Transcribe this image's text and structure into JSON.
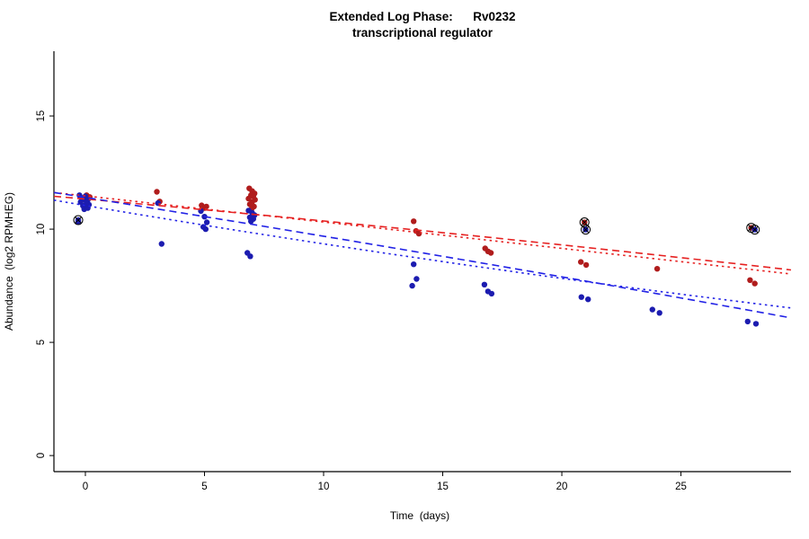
{
  "chart_data": {
    "type": "scatter",
    "title_line1": "Extended Log Phase:      Rv0232",
    "title_line2": "transcriptional regulator",
    "xlabel": "Time  (days)",
    "ylabel": "Abundance  (log2 RPMHEG)",
    "xlim": [
      -1.32,
      29.62
    ],
    "ylim": [
      -0.71,
      17.86
    ],
    "xticks": [
      0,
      5,
      10,
      15,
      20,
      25
    ],
    "yticks": [
      0,
      5,
      10,
      15
    ],
    "grid": false,
    "legend": "none",
    "colors": {
      "red": "#b01c1c",
      "blue": "#1c1cb0",
      "red_line": "#e62222",
      "blue_line": "#2222e6",
      "flag": "#000000"
    },
    "series": [
      {
        "name": "red",
        "color_key": "red",
        "points": [
          [
            0.05,
            11.5
          ],
          [
            0.18,
            11.42
          ],
          [
            -0.08,
            11.35
          ],
          [
            3.0,
            11.65
          ],
          [
            3.12,
            11.22
          ],
          [
            4.88,
            11.05
          ],
          [
            5.08,
            11.0
          ],
          [
            5.0,
            10.93
          ],
          [
            6.88,
            11.8
          ],
          [
            7.0,
            11.68
          ],
          [
            7.1,
            11.58
          ],
          [
            6.95,
            11.5
          ],
          [
            7.05,
            11.45
          ],
          [
            6.85,
            11.35
          ],
          [
            7.12,
            11.3
          ],
          [
            7.0,
            11.2
          ],
          [
            6.9,
            11.1
          ],
          [
            7.08,
            11.0
          ],
          [
            6.98,
            10.9
          ],
          [
            13.78,
            10.35
          ],
          [
            13.88,
            9.92
          ],
          [
            14.0,
            9.8
          ],
          [
            16.78,
            9.15
          ],
          [
            16.9,
            9.02
          ],
          [
            17.02,
            8.95
          ],
          [
            20.8,
            8.55
          ],
          [
            21.02,
            8.42
          ],
          [
            24.0,
            8.25
          ],
          [
            27.9,
            7.75
          ],
          [
            28.1,
            7.6
          ]
        ]
      },
      {
        "name": "blue",
        "color_key": "blue",
        "points": [
          [
            -0.25,
            11.5
          ],
          [
            0.0,
            11.45
          ],
          [
            -0.15,
            11.38
          ],
          [
            -0.05,
            11.3
          ],
          [
            0.1,
            11.28
          ],
          [
            -0.2,
            11.2
          ],
          [
            0.05,
            11.15
          ],
          [
            0.15,
            11.08
          ],
          [
            -0.1,
            11.03
          ],
          [
            0.0,
            10.98
          ],
          [
            0.1,
            10.93
          ],
          [
            -0.05,
            10.88
          ],
          [
            -0.3,
            10.33
          ],
          [
            3.05,
            11.15
          ],
          [
            3.2,
            9.35
          ],
          [
            4.85,
            10.8
          ],
          [
            5.0,
            10.55
          ],
          [
            5.1,
            10.3
          ],
          [
            4.95,
            10.1
          ],
          [
            5.05,
            10.0
          ],
          [
            6.85,
            10.82
          ],
          [
            7.0,
            10.72
          ],
          [
            7.1,
            10.62
          ],
          [
            6.9,
            10.52
          ],
          [
            7.05,
            10.45
          ],
          [
            6.95,
            10.35
          ],
          [
            6.8,
            8.95
          ],
          [
            6.92,
            8.8
          ],
          [
            13.78,
            8.45
          ],
          [
            13.9,
            7.8
          ],
          [
            13.72,
            7.5
          ],
          [
            16.75,
            7.55
          ],
          [
            16.9,
            7.25
          ],
          [
            17.05,
            7.15
          ],
          [
            20.82,
            7.0
          ],
          [
            21.1,
            6.9
          ],
          [
            23.8,
            6.45
          ],
          [
            24.1,
            6.3
          ],
          [
            27.8,
            5.92
          ],
          [
            28.15,
            5.82
          ]
        ]
      }
    ],
    "flagged_points": [
      {
        "x": -0.3,
        "y": 10.4,
        "series": "blue"
      },
      {
        "x": 20.95,
        "y": 10.3,
        "series": "red"
      },
      {
        "x": 21.0,
        "y": 9.98,
        "series": "blue"
      },
      {
        "x": 27.95,
        "y": 10.06,
        "series": "red"
      },
      {
        "x": 28.1,
        "y": 9.98,
        "series": "blue"
      }
    ],
    "trend_lines": [
      {
        "name": "red-dashed",
        "color_key": "red_line",
        "dash": "8 5",
        "x": [
          -1.32,
          14,
          29.62
        ],
        "y": [
          11.45,
          9.95,
          8.2
        ]
      },
      {
        "name": "red-dotted",
        "color_key": "red_line",
        "dash": "2.5 4",
        "x": [
          -1.32,
          14,
          29.62
        ],
        "y": [
          11.62,
          9.85,
          8.02
        ]
      },
      {
        "name": "blue-dashed",
        "color_key": "blue_line",
        "dash": "8 5",
        "x": [
          -1.32,
          14,
          29.62
        ],
        "y": [
          11.62,
          8.98,
          6.08
        ]
      },
      {
        "name": "blue-dotted",
        "color_key": "blue_line",
        "dash": "2.5 4",
        "x": [
          -1.32,
          14,
          29.62
        ],
        "y": [
          11.28,
          8.72,
          6.52
        ]
      }
    ]
  }
}
